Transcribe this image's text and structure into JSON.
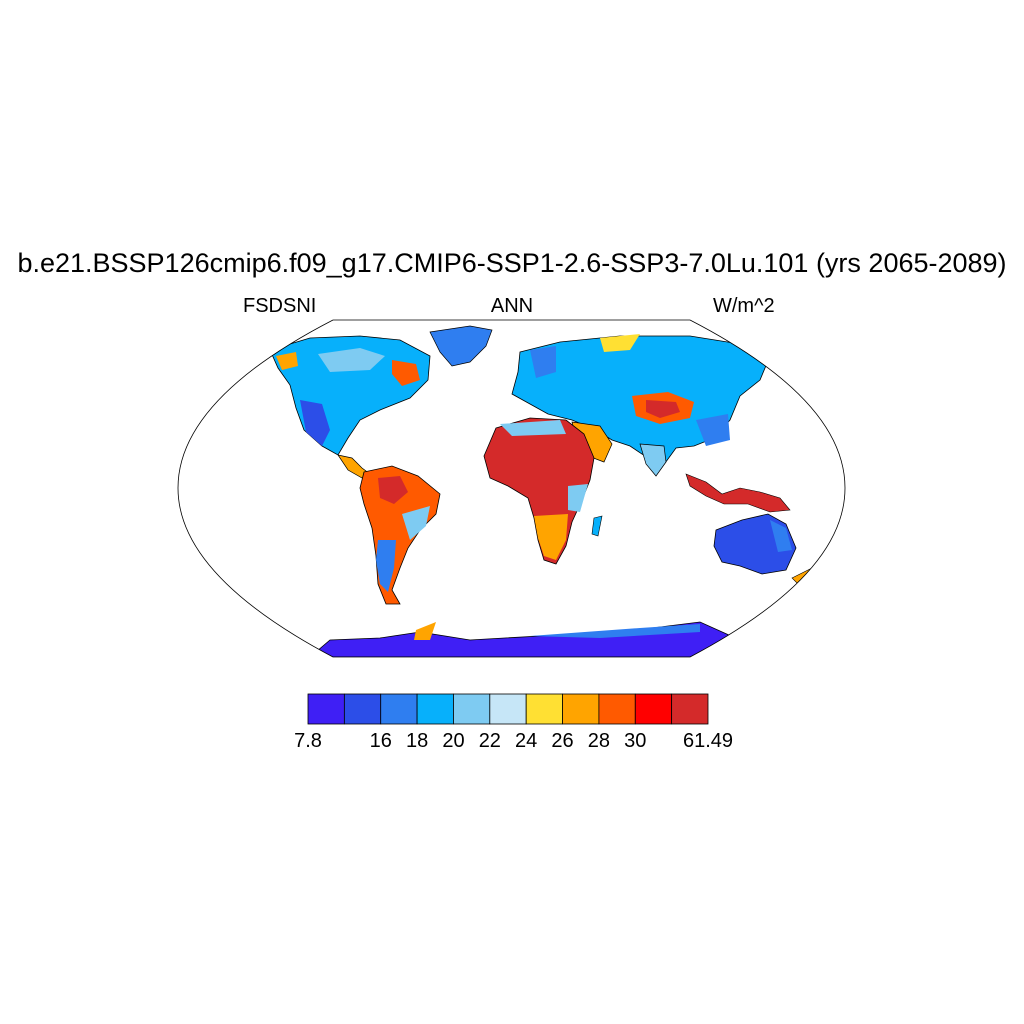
{
  "title": "b.e21.BSSP126cmip6.f09_g17.CMIP6-SSP1-2.6-SSP3-7.0Lu.101 (yrs 2065-2089)",
  "left_label": "FSDSNI",
  "center_label": "ANN",
  "right_label": "W/m^2",
  "colorbar": {
    "colors": [
      "#3f1ff5",
      "#2c4ee8",
      "#2f7ef0",
      "#07b0fb",
      "#7ecbf2",
      "#c6e6f7",
      "#ffe033",
      "#ffa400",
      "#ff5a00",
      "#ff0000",
      "#d42a2a"
    ],
    "tick_labels": [
      "7.8",
      "16",
      "18",
      "20",
      "22",
      "24",
      "26",
      "28",
      "30",
      "61.49"
    ],
    "tick_boundaries": [
      0,
      2,
      3,
      4,
      5,
      6,
      7,
      8,
      9,
      11
    ]
  }
}
